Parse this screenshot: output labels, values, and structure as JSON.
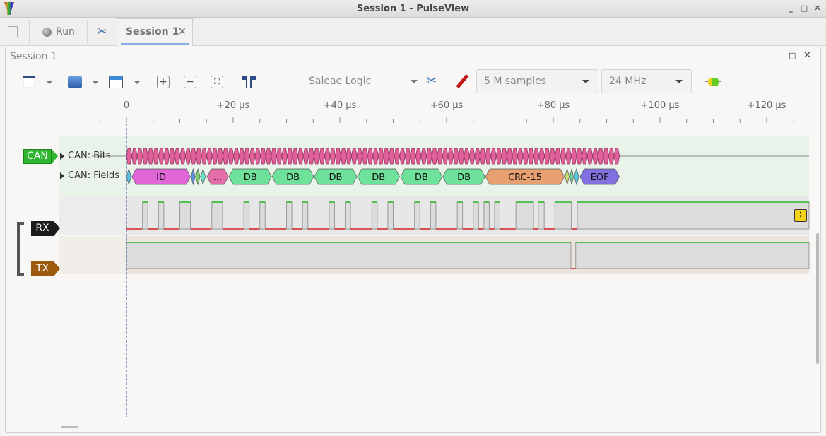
{
  "window": {
    "title": "Session 1 - PulseView",
    "controls": [
      "_",
      "□",
      "✕"
    ]
  },
  "tabbar": {
    "run_label": "Run",
    "session_tab": "Session 1",
    "close": "✕"
  },
  "session": {
    "title": "Session 1",
    "controls": [
      "□",
      "✕"
    ]
  },
  "toolbar": {
    "device": "Saleae Logic",
    "samples": "5 M samples",
    "samplerate": "24 MHz"
  },
  "ruler": {
    "ticks": [
      {
        "t": 0,
        "label": "0"
      },
      {
        "t": 20,
        "label": "+20 µs"
      },
      {
        "t": 40,
        "label": "+40 µs"
      },
      {
        "t": 60,
        "label": "+60 µs"
      },
      {
        "t": 80,
        "label": "+80 µs"
      },
      {
        "t": 100,
        "label": "+100 µs"
      },
      {
        "t": 120,
        "label": "+120 µs"
      }
    ]
  },
  "decoder": {
    "name": "CAN",
    "rows": [
      "CAN: Bits",
      "CAN: Fields"
    ],
    "color": "#2fb52f",
    "bits_end_us": 92.4,
    "fields": [
      {
        "s": 0,
        "e": 0.9,
        "label": "",
        "color": "#5bc0de"
      },
      {
        "s": 1.0,
        "e": 12.0,
        "label": "ID",
        "color": "#e066d8"
      },
      {
        "s": 12.1,
        "e": 12.9,
        "label": "",
        "color": "#5b8fe0"
      },
      {
        "s": 13.0,
        "e": 13.8,
        "label": "",
        "color": "#7ed06a"
      },
      {
        "s": 13.9,
        "e": 14.8,
        "label": "",
        "color": "#6ee0c8"
      },
      {
        "s": 15.1,
        "e": 19.1,
        "label": "...",
        "color": "#e46fa8"
      },
      {
        "s": 19.2,
        "e": 27.2,
        "label": "DB",
        "color": "#6ee29a"
      },
      {
        "s": 27.3,
        "e": 35.1,
        "label": "DB",
        "color": "#6ee29a"
      },
      {
        "s": 35.2,
        "e": 43.2,
        "label": "DB",
        "color": "#6ee29a"
      },
      {
        "s": 43.3,
        "e": 51.2,
        "label": "DB",
        "color": "#6ee29a"
      },
      {
        "s": 51.4,
        "e": 59.2,
        "label": "DB",
        "color": "#6ee29a"
      },
      {
        "s": 59.3,
        "e": 67.2,
        "label": "DB",
        "color": "#6ee29a"
      },
      {
        "s": 67.3,
        "e": 82.1,
        "label": "CRC-15",
        "color": "#e8a070"
      },
      {
        "s": 82.2,
        "e": 83.0,
        "label": "",
        "color": "#c4e070"
      },
      {
        "s": 83.1,
        "e": 83.8,
        "label": "",
        "color": "#70d0a0"
      },
      {
        "s": 83.9,
        "e": 84.8,
        "label": "",
        "color": "#5bc8e0"
      },
      {
        "s": 85.0,
        "e": 92.4,
        "label": "EOF",
        "color": "#8070e0"
      }
    ]
  },
  "channels": [
    {
      "name": "RX",
      "color": "#1a1a1a",
      "high_intervals_us": [
        [
          3,
          4
        ],
        [
          6,
          7
        ],
        [
          10,
          12
        ],
        [
          16,
          18
        ],
        [
          22,
          23
        ],
        [
          25,
          26
        ],
        [
          30,
          31
        ],
        [
          33,
          34
        ],
        [
          38,
          39
        ],
        [
          41,
          42
        ],
        [
          46,
          47
        ],
        [
          49,
          50
        ],
        [
          54,
          55
        ],
        [
          57,
          58
        ],
        [
          62,
          63
        ],
        [
          65,
          66
        ],
        [
          67,
          68
        ],
        [
          69,
          70
        ],
        [
          73,
          76.3
        ],
        [
          77.2,
          78.3
        ],
        [
          80.3,
          83.4
        ],
        [
          84.5,
          130
        ]
      ]
    },
    {
      "name": "TX",
      "color": "#9c5a0c",
      "high_intervals_us": [
        [
          0,
          83.3
        ],
        [
          84.2,
          130
        ]
      ]
    }
  ]
}
